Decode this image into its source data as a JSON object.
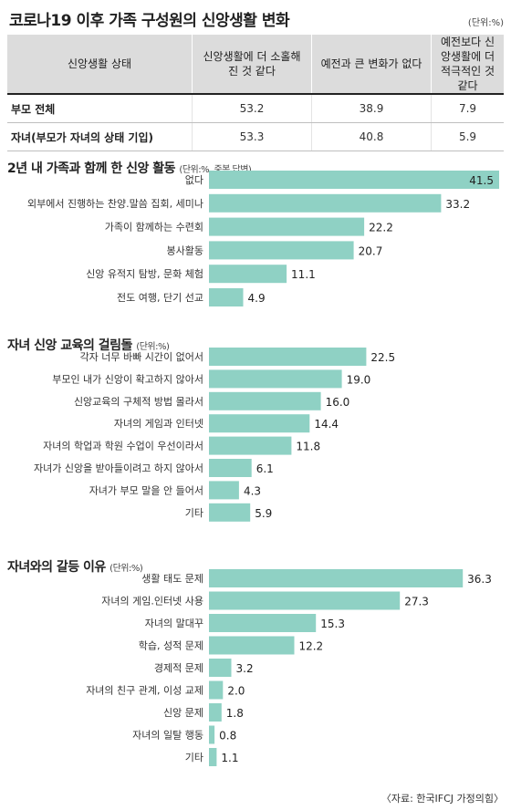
{
  "title": "코로나19 이후 가족 구성원의 신앙생활 변화",
  "unit_label": "(단위:%)",
  "summary_table": {
    "headers": [
      "신앙생활 상태",
      "신앙생활에 더 소홀해진 것 같다",
      "예전과 큰 변화가 없다",
      "예전보다 신앙생활에 더 적극적인 것 같다"
    ],
    "rows": [
      [
        "부모 전체",
        "53.2",
        "38.9",
        "7.9"
      ],
      [
        "자녀(부모가 자녀의 상태 기입)",
        "53.3",
        "40.8",
        "5.9"
      ]
    ]
  },
  "chart_data": [
    {
      "type": "bar",
      "orientation": "horizontal",
      "title": "2년 내 가족과 함께 한 신앙 활동",
      "unit": "(단위:%, 중복 답변)",
      "categories": [
        "없다",
        "외부에서 진행하는 찬양.말씀 집회, 세미나",
        "가족이 함께하는 수련회",
        "봉사활동",
        "신앙 유적지 탐방, 문화 체험",
        "전도 여행, 단기 선교"
      ],
      "values": [
        41.5,
        33.2,
        22.2,
        20.7,
        11.1,
        4.9
      ],
      "xlim": [
        0,
        41.5
      ]
    },
    {
      "type": "bar",
      "orientation": "horizontal",
      "title": "자녀 신앙 교육의 걸림돌",
      "unit": "(단위:%)",
      "categories": [
        "각자 너무 바빠 시간이 없어서",
        "부모인 내가 신앙이 확고하지 않아서",
        "신앙교육의 구체적 방법 몰라서",
        "자녀의 게임과 인터넷",
        "자녀의 학업과 학원 수업이 우선이라서",
        "자녀가 신앙을 받아들이려고 하지 않아서",
        "자녀가 부모 말을 안 들어서",
        "기타"
      ],
      "values": [
        22.5,
        19.0,
        16.0,
        14.4,
        11.8,
        6.1,
        4.3,
        5.9
      ],
      "xlim": [
        0,
        41.5
      ]
    },
    {
      "type": "bar",
      "orientation": "horizontal",
      "title": "자녀와의 갈등 이유",
      "unit": "(단위:%)",
      "categories": [
        "생활 태도 문제",
        "자녀의 게임.인터넷 사용",
        "자녀의 말대꾸",
        "학습, 성적 문제",
        "경제적 문제",
        "자녀의 친구 관계, 이성 교제",
        "신앙 문제",
        "자녀의 일탈 행동",
        "기타"
      ],
      "values": [
        36.3,
        27.3,
        15.3,
        12.2,
        3.2,
        2.0,
        1.8,
        0.8,
        1.1
      ],
      "xlim": [
        0,
        41.5
      ]
    }
  ],
  "colors": {
    "bar": "#8fd1c4",
    "header_bg": "#dcdcdc"
  },
  "source": "〈자료: 한국IFCJ 가정의힘〉"
}
